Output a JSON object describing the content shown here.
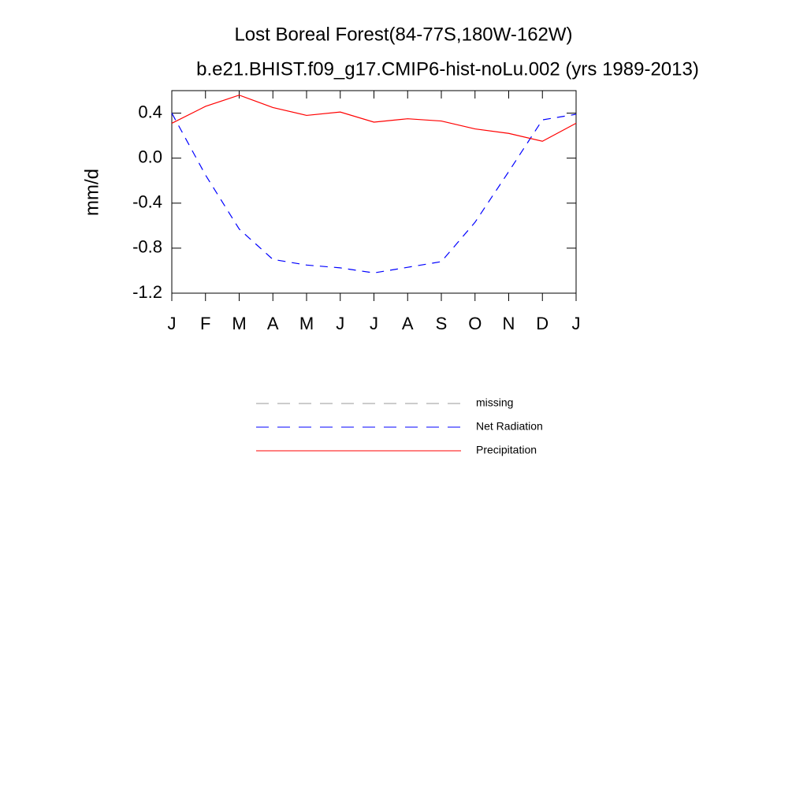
{
  "chart_data": {
    "type": "line",
    "title": "Lost Boreal Forest(84-77S,180W-162W)",
    "subtitle": "b.e21.BHIST.f09_g17.CMIP6-hist-noLu.002 (yrs 1989-2013)",
    "y_label": "mm/d",
    "categories": [
      "J",
      "F",
      "M",
      "A",
      "M",
      "J",
      "J",
      "A",
      "S",
      "O",
      "N",
      "D",
      "J"
    ],
    "series": [
      {
        "name": "missing",
        "color": "#999999",
        "dash": true,
        "values": [
          null,
          null,
          null,
          null,
          null,
          null,
          null,
          null,
          null,
          null,
          null,
          null,
          null
        ]
      },
      {
        "name": "Net Radiation",
        "color": "#0000ff",
        "dash": true,
        "values": [
          0.4,
          -0.15,
          -0.63,
          -0.9,
          -0.95,
          -0.975,
          -1.02,
          -0.97,
          -0.92,
          -0.57,
          -0.12,
          0.34,
          0.39
        ]
      },
      {
        "name": "Precipitation",
        "color": "#ff0000",
        "dash": false,
        "values": [
          0.31,
          0.46,
          0.56,
          0.45,
          0.38,
          0.41,
          0.32,
          0.35,
          0.33,
          0.26,
          0.22,
          0.15,
          0.31
        ]
      }
    ],
    "ylim": [
      -1.2,
      0.6
    ],
    "yticks": [
      {
        "value": 0.4,
        "label": "0.4"
      },
      {
        "value": 0,
        "label": "0.0"
      },
      {
        "value": -0.4,
        "label": "-0.4"
      },
      {
        "value": -0.8,
        "label": "-0.8"
      },
      {
        "value": -1.2,
        "label": "-1.2"
      }
    ],
    "grid": false
  }
}
